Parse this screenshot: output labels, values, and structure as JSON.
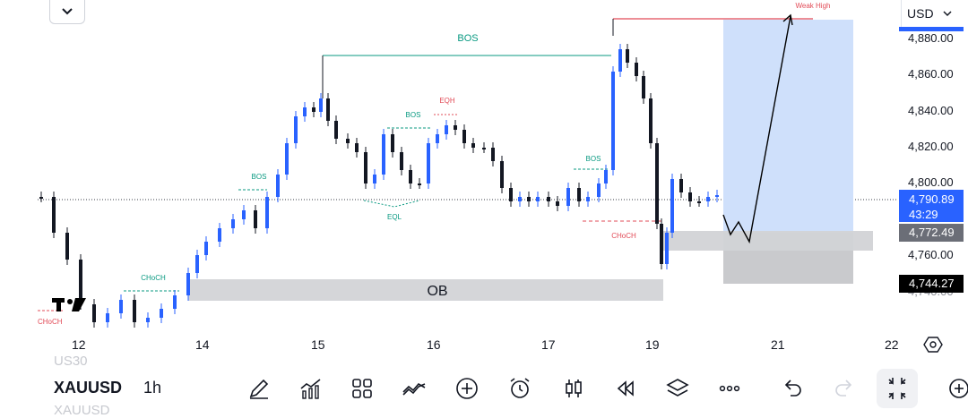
{
  "header": {
    "dropdown_icon": "chevron-down-icon",
    "currency": "USD",
    "currency_icon": "chevron-down-icon"
  },
  "price_axis": {
    "labels": [
      "4,880.00",
      "4,860.00",
      "4,840.00",
      "4,820.00",
      "4,800.00",
      "4,760.00"
    ],
    "last_price": "4,790.89",
    "countdown": "43:29",
    "level_1": "4,772.49",
    "level_2": "4,744.27",
    "partial_label": "4,740.00"
  },
  "time_axis": {
    "labels": [
      "12",
      "14",
      "15",
      "16",
      "17",
      "19",
      "21",
      "22"
    ],
    "settings_icon": "gear-icon"
  },
  "annotations": {
    "bos_main": "BOS",
    "bos_left": "BOS",
    "bos_mid": "BOS",
    "bos_right": "BOS",
    "eqh": "EQH",
    "eql": "EQL",
    "choch_left": "CHoCH",
    "choch_edge": "CHoCH",
    "choch_right": "CHoCH",
    "weak_high": "Weak High",
    "ob": "OB"
  },
  "toolbar": {
    "symbol": "XAUUSD",
    "interval": "1h",
    "ghost_above": "US30",
    "ghost_below": "XAUUSD",
    "icons": [
      "pencil-icon",
      "indicators-icon",
      "grid-icon",
      "compare-icon",
      "add-icon",
      "alarm-icon",
      "candles-icon",
      "replay-icon",
      "layers-icon",
      "more-icon",
      "undo-icon",
      "redo-icon",
      "fullscreen-icon",
      "plus-panel-icon"
    ]
  },
  "colors": {
    "bullish": "#2962ff",
    "bearish": "#131722",
    "bos_color": "#089981",
    "eqh_color": "#e24b57",
    "projection_fill": "#cfe0fb",
    "ob_fill": "#d5d6d9",
    "accent": "#2962ff"
  }
}
